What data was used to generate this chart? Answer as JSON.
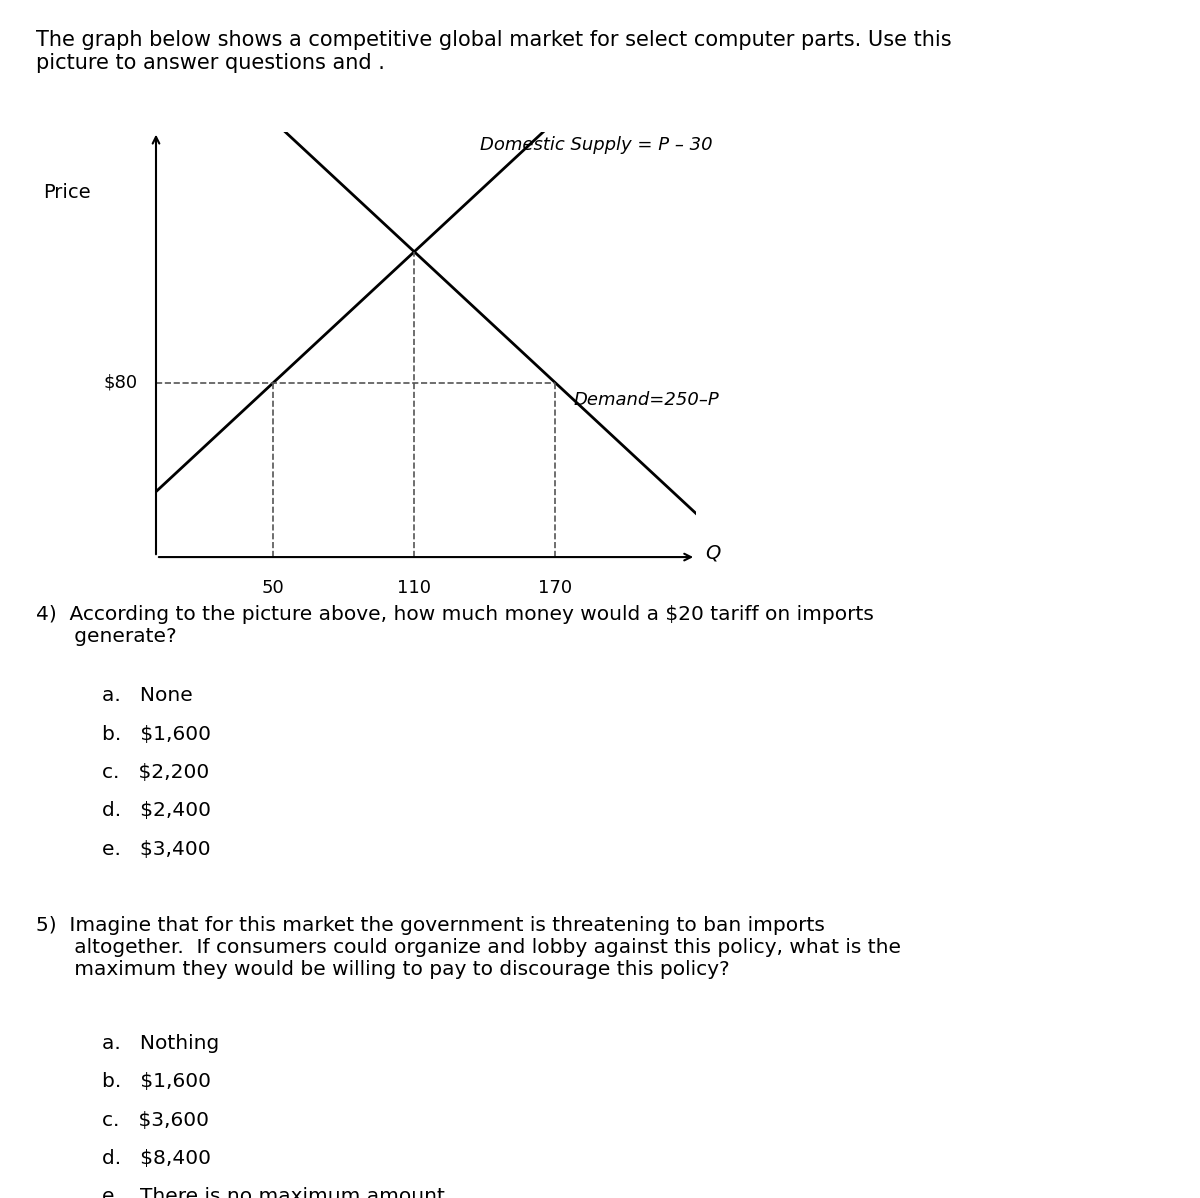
{
  "title_text": "The graph below shows a competitive global market for select computer parts. Use this\npicture to answer questions and .",
  "price_label": "Price",
  "q_label": "Q",
  "price_80": 80,
  "q_50": 50,
  "q_110": 110,
  "q_170": 170,
  "supply_label": "Domestic Supply = P – 30",
  "demand_label": "Demand=250–P",
  "dashed_color": "#555555",
  "line_color": "#000000",
  "background_color": "#ffffff",
  "title_fontsize": 15,
  "label_fontsize": 14,
  "tick_fontsize": 13,
  "curve_label_fontsize": 13,
  "q4_question": "4)  According to the picture above, how much money would a $20 tariff on imports\n      generate?",
  "q4_choices": [
    "a.   None",
    "b.   $1,600",
    "c.   $2,200",
    "d.   $2,400",
    "e.   $3,400"
  ],
  "q5_question": "5)  Imagine that for this market the government is threatening to ban imports\n      altogether.  If consumers could organize and lobby against this policy, what is the\n      maximum they would be willing to pay to discourage this policy?",
  "q5_choices": [
    "a.   Nothing",
    "b.   $1,600",
    "c.   $3,600",
    "d.   $8,400",
    "e.   There is no maximum amount."
  ]
}
